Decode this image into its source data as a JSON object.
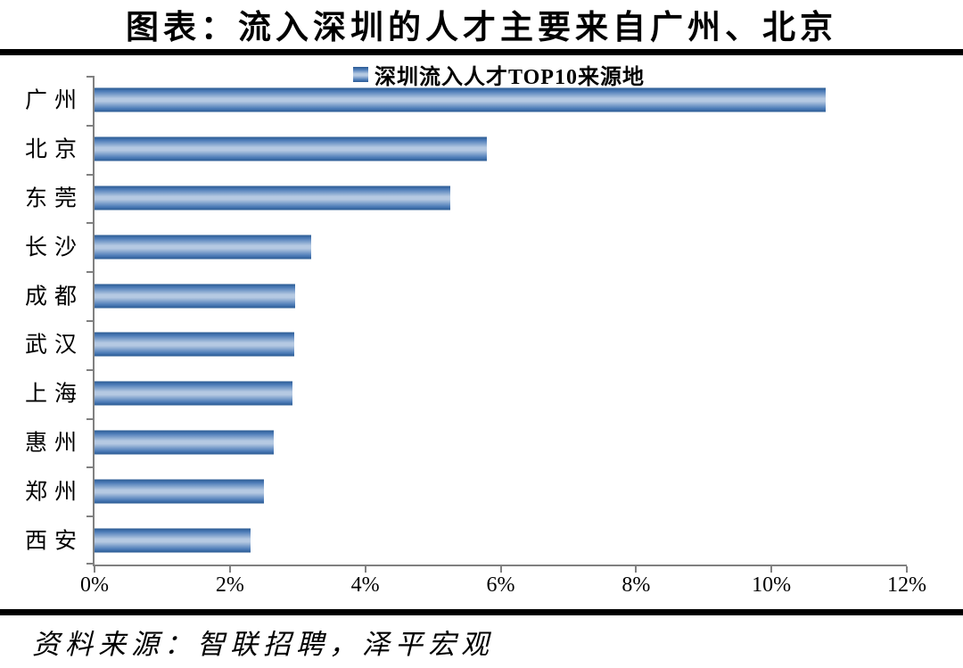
{
  "header": {
    "title": "图表：流入深圳的人才主要来自广州、北京"
  },
  "chart_data": {
    "type": "bar",
    "orientation": "horizontal",
    "title": "深圳流入人才TOP10来源地",
    "legend": [
      "深圳流入人才TOP10来源地"
    ],
    "legend_position": "top",
    "categories": [
      "广州",
      "北京",
      "东莞",
      "长沙",
      "成都",
      "武汉",
      "上海",
      "惠州",
      "郑州",
      "西安"
    ],
    "values": [
      10.8,
      5.8,
      5.25,
      3.2,
      2.96,
      2.95,
      2.93,
      2.65,
      2.5,
      2.3
    ],
    "unit": "%",
    "xlabel": "",
    "ylabel": "",
    "xlim": [
      0,
      12
    ],
    "x_ticks": [
      "0%",
      "2%",
      "4%",
      "6%",
      "8%",
      "10%",
      "12%"
    ],
    "grid": false
  },
  "footer": {
    "source": "资料来源：智联招聘，泽平宏观"
  },
  "colors": {
    "bar_edge": "#2a5a92",
    "bar_body": "#4d7cb8",
    "bar_mid": "#b5c9e2",
    "axis": "#808080",
    "rule": "#000000",
    "text": "#000000"
  }
}
